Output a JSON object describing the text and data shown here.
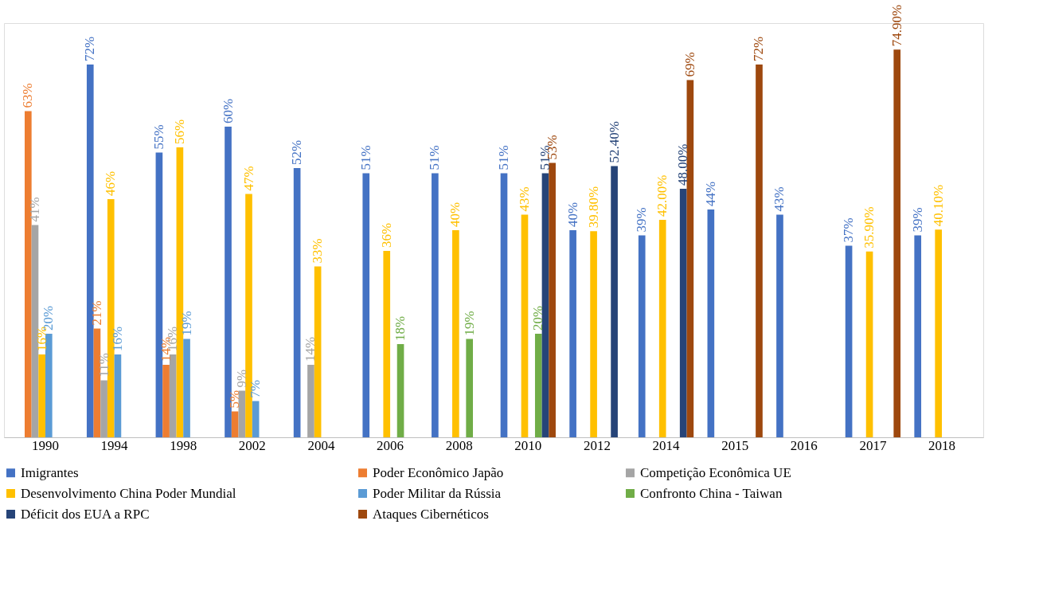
{
  "chart_data": {
    "type": "bar",
    "categories": [
      "1990",
      "1994",
      "1998",
      "2002",
      "2004",
      "2006",
      "2008",
      "2010",
      "2012",
      "2014",
      "2015",
      "2016",
      "2017",
      "2018"
    ],
    "series": [
      {
        "name": "Imigrantes",
        "color": "#4472c4",
        "values": [
          null,
          72,
          55,
          60,
          52,
          51,
          51,
          51,
          40,
          39,
          44,
          43,
          37,
          39
        ],
        "value_labels": [
          null,
          "72%",
          "55%",
          "60%",
          "52%",
          "51%",
          "51%",
          "51%",
          "40%",
          "39%",
          "44%",
          "43%",
          "37%",
          "39%"
        ]
      },
      {
        "name": "Poder Econômico Japão",
        "color": "#ed7d31",
        "values": [
          63,
          21,
          14,
          5,
          null,
          null,
          null,
          null,
          null,
          null,
          null,
          null,
          null,
          null
        ],
        "value_labels": [
          "63%",
          "21%",
          "14%",
          "5%",
          null,
          null,
          null,
          null,
          null,
          null,
          null,
          null,
          null,
          null
        ]
      },
      {
        "name": "Competição Econômica UE",
        "color": "#a5a5a5",
        "values": [
          41,
          11,
          16,
          9,
          14,
          null,
          null,
          null,
          null,
          null,
          null,
          null,
          null,
          null
        ],
        "value_labels": [
          "41%",
          "11%",
          "16%",
          "9%",
          "14%",
          null,
          null,
          null,
          null,
          null,
          null,
          null,
          null,
          null
        ]
      },
      {
        "name": "Desenvolvimento China Poder Mundial",
        "color": "#ffc000",
        "values": [
          16,
          46,
          56,
          47,
          33,
          36,
          40,
          43,
          39.8,
          42.0,
          null,
          null,
          35.9,
          40.1
        ],
        "value_labels": [
          "16%",
          "46%",
          "56%",
          "47%",
          "33%",
          "36%",
          "40%",
          "43%",
          "39.80%",
          "42.00%",
          null,
          null,
          "35.90%",
          "40.10%"
        ]
      },
      {
        "name": "Poder Militar da Rússia",
        "color": "#5b9bd5",
        "values": [
          20,
          16,
          19,
          7,
          null,
          null,
          null,
          null,
          null,
          null,
          null,
          null,
          null,
          null
        ],
        "value_labels": [
          "20%",
          "16%",
          "19%",
          "7%",
          null,
          null,
          null,
          null,
          null,
          null,
          null,
          null,
          null,
          null
        ]
      },
      {
        "name": "Confronto China - Taiwan",
        "color": "#70ad47",
        "values": [
          null,
          null,
          null,
          null,
          null,
          18,
          19,
          20,
          null,
          null,
          null,
          null,
          null,
          null
        ],
        "value_labels": [
          null,
          null,
          null,
          null,
          null,
          "18%",
          "19%",
          "20%",
          null,
          null,
          null,
          null,
          null,
          null
        ]
      },
      {
        "name": "Déficit dos EUA a RPC",
        "color": "#264478",
        "values": [
          null,
          null,
          null,
          null,
          null,
          null,
          null,
          51,
          52.4,
          48.0,
          null,
          null,
          null,
          null
        ],
        "value_labels": [
          null,
          null,
          null,
          null,
          null,
          null,
          null,
          "51%",
          "52.40%",
          "48.00%",
          null,
          null,
          null,
          null
        ]
      },
      {
        "name": "Ataques Cibernéticos",
        "color": "#9e480e",
        "values": [
          null,
          null,
          null,
          null,
          null,
          null,
          null,
          53,
          null,
          69,
          72,
          null,
          74.9,
          null
        ],
        "value_labels": [
          null,
          null,
          null,
          null,
          null,
          null,
          null,
          "53%",
          null,
          "69%",
          "72%",
          null,
          "74.90%",
          null
        ]
      }
    ],
    "legend": "bottom",
    "grid": false
  }
}
